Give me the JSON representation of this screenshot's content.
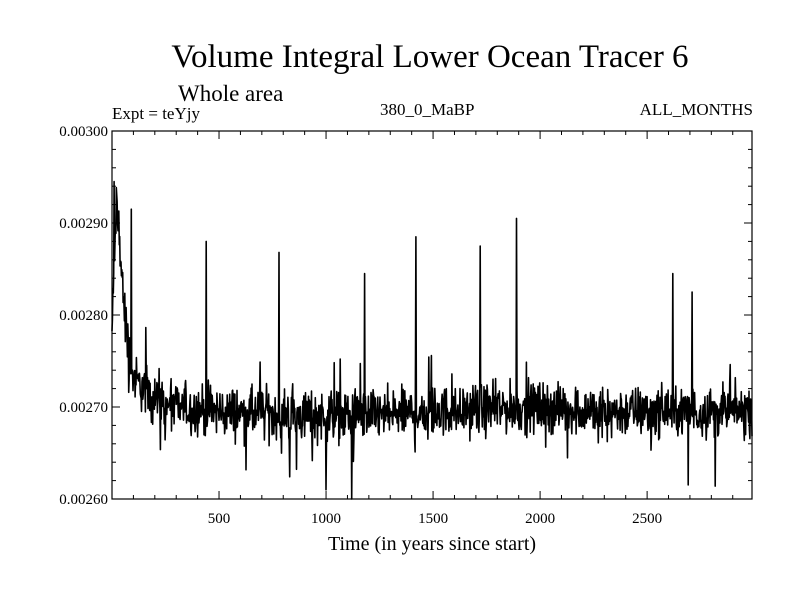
{
  "chart_data": {
    "type": "line",
    "title": "Volume Integral Lower Ocean Tracer 6",
    "subtitle": "Whole area",
    "expt_label": "Expt = teYjy",
    "run_label": "380_0_MaBP",
    "period_label": "ALL_MONTHS",
    "xlabel": "Time (in years since start)",
    "ylabel": "",
    "xlim": [
      0,
      2990
    ],
    "ylim": [
      0.0026,
      0.003
    ],
    "x_ticks": [
      500,
      1000,
      1500,
      2000,
      2500
    ],
    "x_tick_labels": [
      "500",
      "1000",
      "1500",
      "2000",
      "2500"
    ],
    "y_ticks": [
      0.0026,
      0.0027,
      0.0028,
      0.0029,
      0.003
    ],
    "y_tick_labels": [
      "0.00260",
      "0.00270",
      "0.00280",
      "0.00290",
      "0.00300"
    ],
    "grid": false,
    "legend": "none",
    "series": [
      {
        "name": "Volume Integral Lower Ocean Tracer 6",
        "x": [
          0,
          20,
          40,
          60,
          80,
          100,
          150,
          200,
          250,
          300,
          400,
          500,
          700,
          1000,
          1300,
          1500,
          1800,
          2000,
          2300,
          2600,
          2990
        ],
        "values": [
          0.00278,
          0.00292,
          0.00286,
          0.0028,
          0.00276,
          0.00273,
          0.00272,
          0.00271,
          0.0027,
          0.0027,
          0.002697,
          0.002695,
          0.002693,
          0.00269,
          0.002692,
          0.002695,
          0.002698,
          0.0027,
          0.002695,
          0.002695,
          0.002695
        ],
        "noise_amplitude": 4e-05,
        "spikes": [
          {
            "x": 10,
            "value": 0.002945
          },
          {
            "x": 90,
            "value": 0.002915
          },
          {
            "x": 440,
            "value": 0.00288
          },
          {
            "x": 780,
            "value": 0.002868
          },
          {
            "x": 1180,
            "value": 0.002845
          },
          {
            "x": 1420,
            "value": 0.002885
          },
          {
            "x": 1720,
            "value": 0.002875
          },
          {
            "x": 1890,
            "value": 0.002905
          },
          {
            "x": 2620,
            "value": 0.002845
          },
          {
            "x": 2710,
            "value": 0.002825
          },
          {
            "x": 1000,
            "value": 0.00261
          },
          {
            "x": 1120,
            "value": 0.0026
          }
        ]
      }
    ]
  }
}
